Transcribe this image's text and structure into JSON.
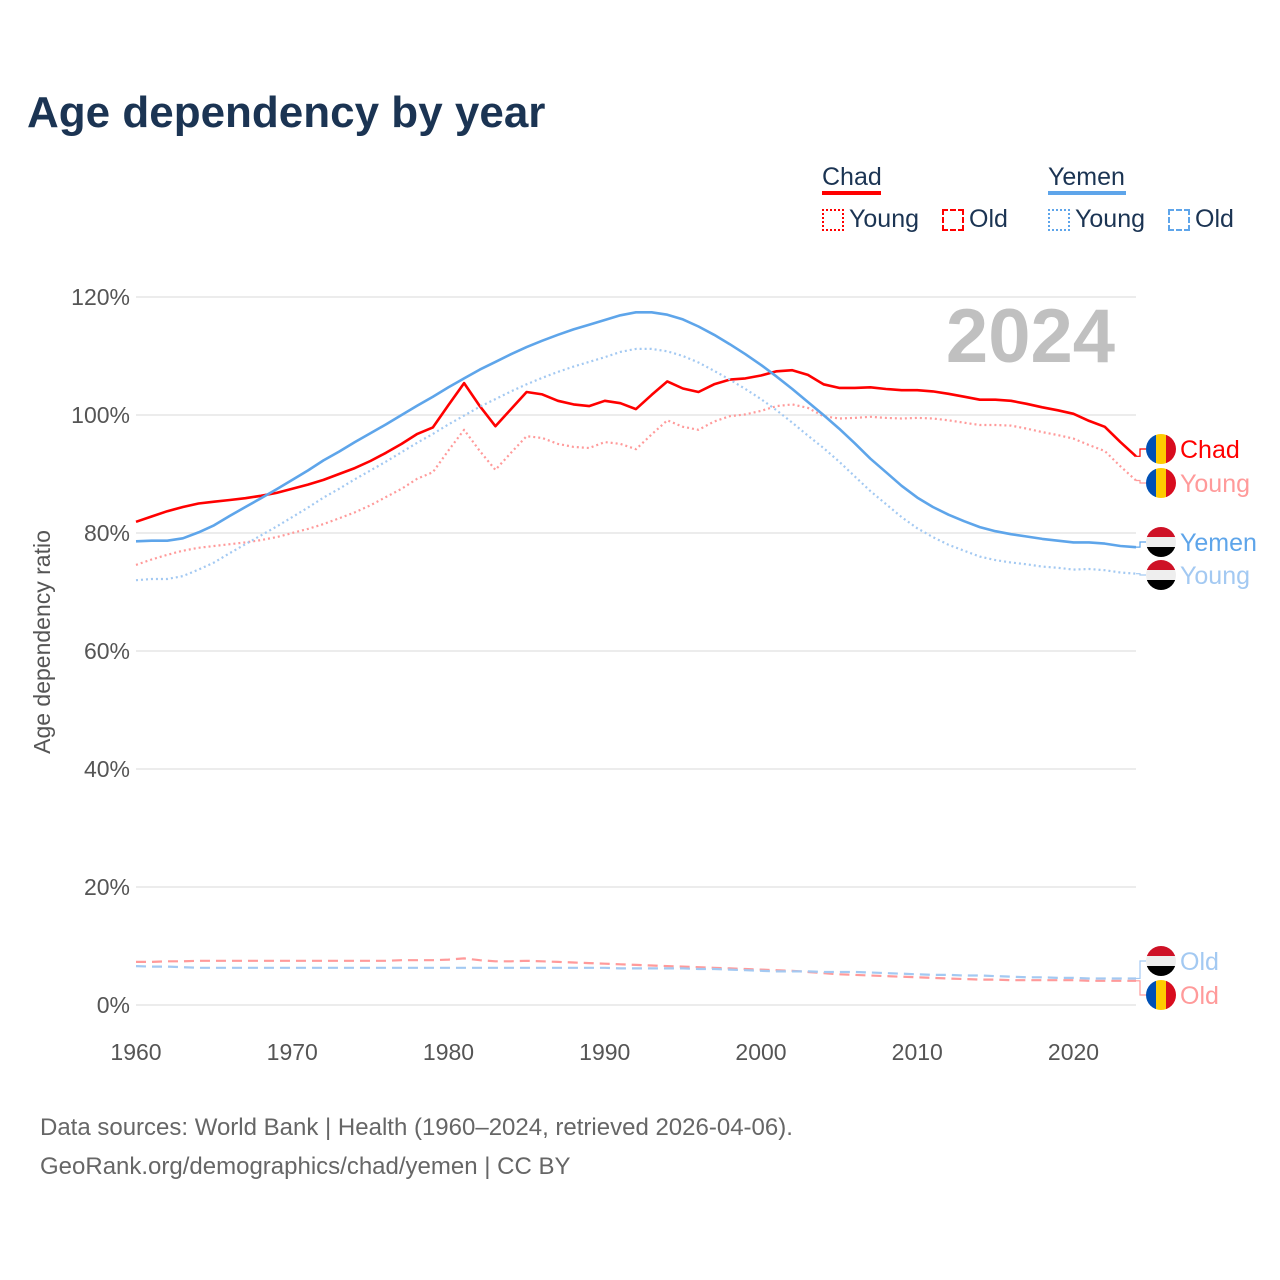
{
  "title": "Age dependency by year",
  "legend": {
    "groups": [
      {
        "country": "Chad",
        "items": [
          "Young",
          "Old"
        ]
      },
      {
        "country": "Yemen",
        "items": [
          "Young",
          "Old"
        ]
      }
    ]
  },
  "source": {
    "line1": "Data sources: World Bank | Health (1960–2024, retrieved 2026-04-06).",
    "line2": "GeoRank.org/demographics/chad/yemen | CC BY"
  },
  "colors": {
    "chad": "#ff0000",
    "chad_light": "#ff9a9a",
    "yemen": "#5ea5ea",
    "yemen_light": "#a3c9f2",
    "title": "#1b3453"
  },
  "chart_data": {
    "type": "line",
    "title": "Age dependency by year",
    "ylabel": "Age dependency ratio",
    "xlabel": "",
    "year_watermark": "2024",
    "xlim": [
      1960,
      2024
    ],
    "ylim": [
      0,
      120
    ],
    "x_ticks": [
      "1960",
      "1970",
      "1980",
      "1990",
      "2000",
      "2010",
      "2020"
    ],
    "y_ticks": [
      "0%",
      "20%",
      "40%",
      "60%",
      "80%",
      "100%",
      "120%"
    ],
    "grid": true,
    "x_start": 1960,
    "series": [
      {
        "name": "Chad",
        "label": "Chad",
        "style": "solid",
        "color": "#ff0000",
        "values": [
          81.9,
          82.8,
          83.7,
          84.4,
          85.0,
          85.3,
          85.6,
          85.9,
          86.3,
          86.8,
          87.5,
          88.2,
          89.0,
          90.0,
          91.0,
          92.2,
          93.6,
          95.1,
          96.8,
          97.9,
          101.7,
          105.4,
          101.5,
          98.1,
          101.0,
          103.9,
          103.5,
          102.4,
          101.8,
          101.5,
          102.4,
          102.0,
          101.0,
          103.4,
          105.7,
          104.5,
          103.9,
          105.2,
          106.0,
          106.2,
          106.7,
          107.4,
          107.6,
          106.8,
          105.2,
          104.6,
          104.6,
          104.7,
          104.4,
          104.2,
          104.2,
          104.0,
          103.6,
          103.1,
          102.6,
          102.6,
          102.4,
          101.9,
          101.3,
          100.8,
          100.2,
          99.0,
          98.0,
          95.4,
          93.0
        ]
      },
      {
        "name": "Chad Young",
        "label": "Young",
        "style": "dotted",
        "color": "#ff9a9a",
        "values": [
          74.6,
          75.5,
          76.3,
          77.0,
          77.5,
          77.8,
          78.1,
          78.4,
          78.8,
          79.3,
          80.0,
          80.7,
          81.5,
          82.5,
          83.5,
          84.7,
          86.1,
          87.5,
          89.2,
          90.3,
          94.0,
          97.5,
          93.9,
          90.7,
          93.6,
          96.4,
          96.1,
          95.1,
          94.6,
          94.4,
          95.4,
          95.1,
          94.2,
          96.7,
          99.1,
          98.0,
          97.5,
          98.9,
          99.8,
          100.1,
          100.7,
          101.5,
          101.8,
          101.2,
          99.8,
          99.4,
          99.5,
          99.7,
          99.5,
          99.4,
          99.5,
          99.4,
          99.1,
          98.7,
          98.3,
          98.3,
          98.2,
          97.7,
          97.1,
          96.6,
          96.0,
          94.9,
          93.9,
          91.3,
          88.9
        ]
      },
      {
        "name": "Chad Old",
        "label": "Old",
        "style": "dashed",
        "color": "#ff9a9a",
        "values": [
          7.3,
          7.3,
          7.4,
          7.4,
          7.5,
          7.5,
          7.5,
          7.5,
          7.5,
          7.5,
          7.5,
          7.5,
          7.5,
          7.5,
          7.5,
          7.5,
          7.5,
          7.6,
          7.6,
          7.6,
          7.7,
          7.9,
          7.6,
          7.4,
          7.4,
          7.5,
          7.4,
          7.3,
          7.2,
          7.1,
          7.0,
          6.9,
          6.8,
          6.7,
          6.6,
          6.5,
          6.4,
          6.3,
          6.2,
          6.1,
          6.0,
          5.9,
          5.8,
          5.6,
          5.4,
          5.2,
          5.1,
          5.0,
          4.9,
          4.8,
          4.7,
          4.6,
          4.5,
          4.4,
          4.3,
          4.3,
          4.2,
          4.2,
          4.2,
          4.2,
          4.2,
          4.1,
          4.1,
          4.1,
          4.1
        ]
      },
      {
        "name": "Yemen",
        "label": "Yemen",
        "style": "solid",
        "color": "#5ea5ea",
        "values": [
          78.6,
          78.7,
          78.7,
          79.1,
          80.1,
          81.3,
          82.9,
          84.4,
          85.9,
          87.4,
          89.0,
          90.6,
          92.3,
          93.8,
          95.4,
          96.9,
          98.4,
          100.0,
          101.6,
          103.1,
          104.7,
          106.2,
          107.7,
          109.0,
          110.3,
          111.5,
          112.6,
          113.6,
          114.5,
          115.3,
          116.1,
          116.9,
          117.4,
          117.4,
          117.0,
          116.2,
          115.0,
          113.6,
          112.0,
          110.3,
          108.5,
          106.5,
          104.4,
          102.2,
          100.0,
          97.7,
          95.2,
          92.6,
          90.3,
          88.0,
          86.0,
          84.4,
          83.1,
          82.0,
          81.0,
          80.3,
          79.8,
          79.4,
          79.0,
          78.7,
          78.4,
          78.4,
          78.2,
          77.8,
          77.6
        ]
      },
      {
        "name": "Yemen Young",
        "label": "Young",
        "style": "dotted",
        "color": "#a3c9f2",
        "values": [
          72.0,
          72.2,
          72.2,
          72.7,
          73.8,
          75.0,
          76.6,
          78.1,
          79.6,
          81.1,
          82.7,
          84.3,
          86.0,
          87.5,
          89.1,
          90.6,
          92.1,
          93.7,
          95.3,
          96.8,
          98.4,
          99.9,
          101.4,
          102.7,
          104.0,
          105.2,
          106.3,
          107.3,
          108.2,
          109.0,
          109.8,
          110.7,
          111.2,
          111.2,
          110.8,
          110.0,
          108.9,
          107.5,
          106.0,
          104.4,
          102.7,
          100.8,
          98.7,
          96.5,
          94.4,
          92.1,
          89.6,
          87.1,
          84.9,
          82.7,
          80.8,
          79.3,
          78.0,
          77.0,
          76.0,
          75.4,
          75.0,
          74.7,
          74.3,
          74.1,
          73.8,
          73.9,
          73.7,
          73.3,
          73.1
        ]
      },
      {
        "name": "Yemen Old",
        "label": "Old",
        "style": "dashed",
        "color": "#a3c9f2",
        "values": [
          6.6,
          6.5,
          6.5,
          6.4,
          6.3,
          6.3,
          6.3,
          6.3,
          6.3,
          6.3,
          6.3,
          6.3,
          6.3,
          6.3,
          6.3,
          6.3,
          6.3,
          6.3,
          6.3,
          6.3,
          6.3,
          6.3,
          6.3,
          6.3,
          6.3,
          6.3,
          6.3,
          6.3,
          6.3,
          6.3,
          6.3,
          6.2,
          6.2,
          6.2,
          6.2,
          6.2,
          6.1,
          6.1,
          6.0,
          5.9,
          5.8,
          5.7,
          5.7,
          5.7,
          5.6,
          5.6,
          5.6,
          5.5,
          5.4,
          5.3,
          5.2,
          5.1,
          5.1,
          5.0,
          5.0,
          4.9,
          4.8,
          4.7,
          4.7,
          4.6,
          4.6,
          4.5,
          4.5,
          4.5,
          4.5
        ]
      }
    ],
    "end_labels": [
      {
        "series": "Chad",
        "text": "Chad",
        "flag": "chad"
      },
      {
        "series": "Chad Young",
        "text": "Young",
        "flag": "chad"
      },
      {
        "series": "Yemen",
        "text": "Yemen",
        "flag": "yemen"
      },
      {
        "series": "Yemen Young",
        "text": "Young",
        "flag": "yemen"
      },
      {
        "series": "Yemen Old",
        "text": "Old",
        "flag": "yemen"
      },
      {
        "series": "Chad Old",
        "text": "Old",
        "flag": "chad"
      }
    ]
  }
}
